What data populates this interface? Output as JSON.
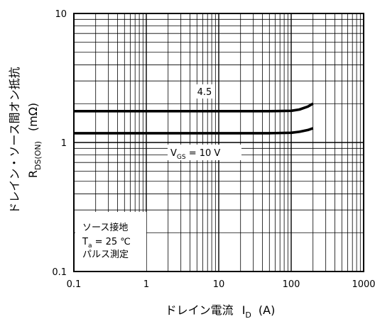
{
  "chart_data": {
    "type": "line",
    "xscale": "log",
    "yscale": "log",
    "xlim": [
      0.1,
      1000
    ],
    "ylim": [
      0.1,
      10
    ],
    "grid": true,
    "x_ticks": [
      "0.1",
      "1",
      "10",
      "100",
      "1000"
    ],
    "y_ticks": [
      "0.1",
      "1",
      "10"
    ],
    "x_axis_label": {
      "main": "ドレイン電流",
      "sym": "I",
      "sub": "D",
      "unit": "(A)"
    },
    "y_axis_label": {
      "main": "ドレイン・ソース間オン抵抗",
      "sym": "R",
      "sub": "DS(ON)",
      "unit": "(mΩ)"
    },
    "series": [
      {
        "label_text": "4.5",
        "x": [
          0.1,
          1,
          10,
          50,
          100,
          130,
          170,
          200
        ],
        "y": [
          1.75,
          1.75,
          1.75,
          1.75,
          1.76,
          1.8,
          1.9,
          2.0
        ]
      },
      {
        "label_sym": "V",
        "label_sub": "GS",
        "label_tail": " = 10 V",
        "x": [
          0.1,
          1,
          10,
          50,
          100,
          130,
          170,
          200
        ],
        "y": [
          1.18,
          1.18,
          1.18,
          1.18,
          1.19,
          1.21,
          1.25,
          1.29
        ]
      }
    ],
    "conditions": {
      "line1": "ソース接地",
      "line2_sym": "T",
      "line2_sub": "a",
      "line2_tail": " = 25 ℃",
      "line3": "パルス測定"
    }
  }
}
